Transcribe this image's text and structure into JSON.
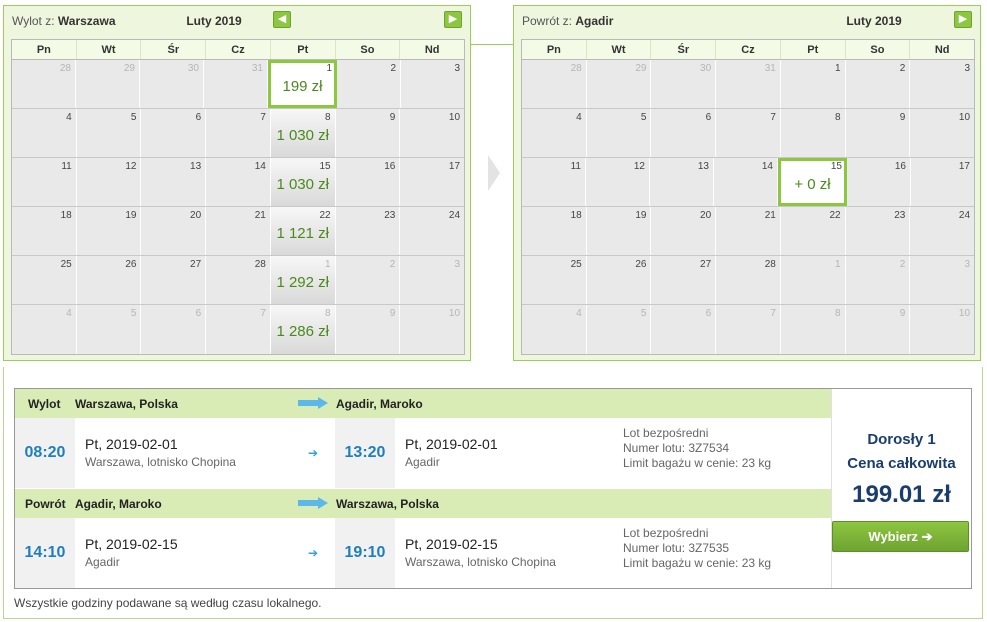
{
  "outbound": {
    "label": "Wylot z:",
    "city": "Warszawa",
    "month": "Luty 2019",
    "weeks": [
      [
        {
          "d": "28",
          "m": true
        },
        {
          "d": "29",
          "m": true
        },
        {
          "d": "30",
          "m": true
        },
        {
          "d": "31",
          "m": true
        },
        {
          "d": "1",
          "p": "199 zł",
          "sel": true
        },
        {
          "d": "2"
        },
        {
          "d": "3"
        }
      ],
      [
        {
          "d": "4"
        },
        {
          "d": "5"
        },
        {
          "d": "6"
        },
        {
          "d": "7"
        },
        {
          "d": "8",
          "p": "1 030 zł"
        },
        {
          "d": "9"
        },
        {
          "d": "10"
        }
      ],
      [
        {
          "d": "11"
        },
        {
          "d": "12"
        },
        {
          "d": "13"
        },
        {
          "d": "14"
        },
        {
          "d": "15",
          "p": "1 030 zł"
        },
        {
          "d": "16"
        },
        {
          "d": "17"
        }
      ],
      [
        {
          "d": "18"
        },
        {
          "d": "19"
        },
        {
          "d": "20"
        },
        {
          "d": "21"
        },
        {
          "d": "22",
          "p": "1 121 zł"
        },
        {
          "d": "23"
        },
        {
          "d": "24"
        }
      ],
      [
        {
          "d": "25"
        },
        {
          "d": "26"
        },
        {
          "d": "27"
        },
        {
          "d": "28"
        },
        {
          "d": "1",
          "m": true,
          "p": "1 292 zł"
        },
        {
          "d": "2",
          "m": true
        },
        {
          "d": "3",
          "m": true
        }
      ],
      [
        {
          "d": "4",
          "m": true
        },
        {
          "d": "5",
          "m": true
        },
        {
          "d": "6",
          "m": true
        },
        {
          "d": "7",
          "m": true
        },
        {
          "d": "8",
          "m": true,
          "p": "1 286 zł"
        },
        {
          "d": "9",
          "m": true
        },
        {
          "d": "10",
          "m": true
        }
      ]
    ]
  },
  "return": {
    "label": "Powrót z:",
    "city": "Agadir",
    "month": "Luty 2019",
    "weeks": [
      [
        {
          "d": "28",
          "m": true
        },
        {
          "d": "29",
          "m": true
        },
        {
          "d": "30",
          "m": true
        },
        {
          "d": "31",
          "m": true
        },
        {
          "d": "1"
        },
        {
          "d": "2"
        },
        {
          "d": "3"
        }
      ],
      [
        {
          "d": "4"
        },
        {
          "d": "5"
        },
        {
          "d": "6"
        },
        {
          "d": "7"
        },
        {
          "d": "8"
        },
        {
          "d": "9"
        },
        {
          "d": "10"
        }
      ],
      [
        {
          "d": "11"
        },
        {
          "d": "12"
        },
        {
          "d": "13"
        },
        {
          "d": "14"
        },
        {
          "d": "15",
          "p": "+ 0 zł",
          "sel": true
        },
        {
          "d": "16"
        },
        {
          "d": "17"
        }
      ],
      [
        {
          "d": "18"
        },
        {
          "d": "19"
        },
        {
          "d": "20"
        },
        {
          "d": "21"
        },
        {
          "d": "22"
        },
        {
          "d": "23"
        },
        {
          "d": "24"
        }
      ],
      [
        {
          "d": "25"
        },
        {
          "d": "26"
        },
        {
          "d": "27"
        },
        {
          "d": "28"
        },
        {
          "d": "1",
          "m": true
        },
        {
          "d": "2",
          "m": true
        },
        {
          "d": "3",
          "m": true
        }
      ],
      [
        {
          "d": "4",
          "m": true
        },
        {
          "d": "5",
          "m": true
        },
        {
          "d": "6",
          "m": true
        },
        {
          "d": "7",
          "m": true
        },
        {
          "d": "8",
          "m": true
        },
        {
          "d": "9",
          "m": true
        },
        {
          "d": "10",
          "m": true
        }
      ]
    ]
  },
  "days_of_week": [
    "Pn",
    "Wt",
    "Śr",
    "Cz",
    "Pt",
    "So",
    "Nd"
  ],
  "legs": [
    {
      "type": "Wylot",
      "from": "Warszawa, Polska",
      "to": "Agadir, Maroko",
      "dep_time": "08:20",
      "dep_date": "Pt, 2019-02-01",
      "dep_place": "Warszawa, lotnisko Chopina",
      "arr_time": "13:20",
      "arr_date": "Pt, 2019-02-01",
      "arr_place": "Agadir",
      "info1": "Lot bezpośredni",
      "info2": "Numer lotu: 3Z7534",
      "info3": "Limit bagażu w cenie: 23 kg"
    },
    {
      "type": "Powrót",
      "from": "Agadir, Maroko",
      "to": "Warszawa, Polska",
      "dep_time": "14:10",
      "dep_date": "Pt, 2019-02-15",
      "dep_place": "Agadir",
      "arr_time": "19:10",
      "arr_date": "Pt, 2019-02-15",
      "arr_place": "Warszawa, lotnisko Chopina",
      "info1": "Lot bezpośredni",
      "info2": "Numer lotu: 3Z7535",
      "info3": "Limit bagażu w cenie: 23 kg"
    }
  ],
  "price_panel": {
    "passenger": "Dorosły 1",
    "total_label": "Cena całkowita",
    "total": "199.01 zł",
    "button": "Wybierz"
  },
  "footnote": "Wszystkie godziny podawane są według czasu lokalnego.",
  "colors": {
    "accent": "#8dc63f",
    "price_text": "#4a8a1c",
    "time_text": "#1f7fbd",
    "route_arrow": "#5bb8e8"
  }
}
